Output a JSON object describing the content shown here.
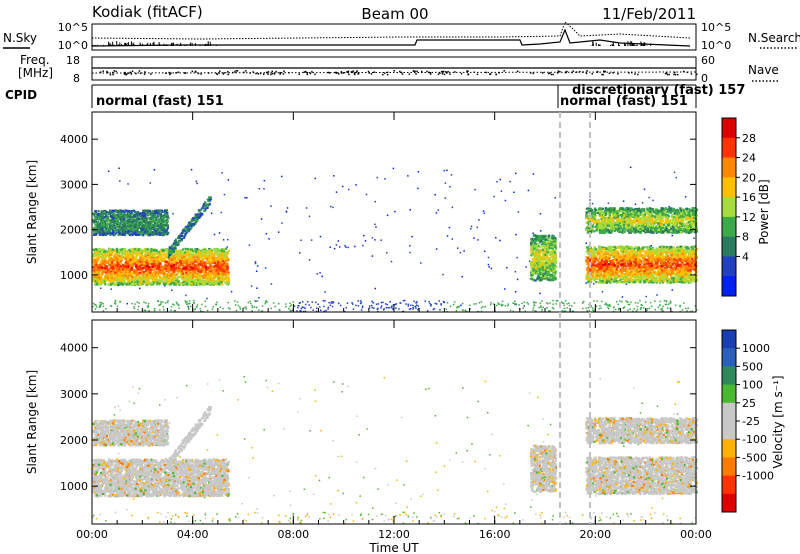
{
  "header": {
    "station": "Kodiak (fitACF)",
    "beam": "Beam 00",
    "date": "11/Feb/2011"
  },
  "strip_labels": {
    "nsky": "N.Sky",
    "nsearch": "N.Search",
    "freq": "Freq.",
    "freq_unit": "[MHz]",
    "nave": "Nave",
    "cpid": "CPID"
  },
  "noise_axis": {
    "left_ticks": [
      "10^5",
      "10^0"
    ],
    "right_ticks": [
      "10^5",
      "10^0"
    ]
  },
  "freq_axis": {
    "left_ticks": [
      "18",
      "8"
    ],
    "right_ticks": [
      "60",
      "0"
    ]
  },
  "cpid_labels": [
    {
      "text": "normal (fast) 151",
      "hour": 0.1
    },
    {
      "text": "normal (fast) 151",
      "hour": 18.75
    },
    {
      "text": "discretionary (fast) 157",
      "hour": 19.3
    }
  ],
  "chart_data": [
    {
      "type": "heatmap",
      "name": "power",
      "xlabel": "",
      "ylabel": "Slant Range [km]",
      "xlim": [
        0,
        24
      ],
      "ylim": [
        180,
        4600
      ],
      "yticks": [
        1000,
        2000,
        3000,
        4000
      ],
      "colorbar": {
        "label": "Power [dB]",
        "ticks": [
          "28",
          "24",
          "20",
          "16",
          "12",
          "8",
          "4"
        ],
        "colors": [
          "#dd0000",
          "#ff3300",
          "#ff8800",
          "#ffc000",
          "#a6dc3c",
          "#3caa48",
          "#2a7a60",
          "#2040c0",
          "#0022ee"
        ]
      },
      "regions": [
        {
          "t0": 0.0,
          "t1": 5.4,
          "r0": 800,
          "r1": 1600,
          "level": "high"
        },
        {
          "t0": 0.0,
          "t1": 3.0,
          "r0": 1900,
          "r1": 2450,
          "level": "low"
        },
        {
          "t0": 17.4,
          "t1": 18.4,
          "r0": 900,
          "r1": 1900,
          "level": "mid"
        },
        {
          "t0": 19.6,
          "t1": 24.0,
          "r0": 850,
          "r1": 1650,
          "level": "high"
        },
        {
          "t0": 19.6,
          "t1": 24.0,
          "r0": 1950,
          "r1": 2500,
          "level": "mid"
        }
      ]
    },
    {
      "type": "heatmap",
      "name": "velocity",
      "xlabel": "Time UT",
      "ylabel": "Slant Range [km]",
      "xlim": [
        0,
        24
      ],
      "ylim": [
        180,
        4600
      ],
      "yticks": [
        1000,
        2000,
        3000,
        4000
      ],
      "xtick_labels": [
        "00:00",
        "04:00",
        "08:00",
        "12:00",
        "16:00",
        "20:00",
        "00:00"
      ],
      "colorbar": {
        "label": "Velocity [m s⁻¹]",
        "ticks": [
          "1000",
          "500",
          "100",
          "25",
          "-25",
          "-100",
          "-500",
          "-1000"
        ],
        "colors": [
          "#1a3fb0",
          "#2a60b8",
          "#2f8a5a",
          "#4ab830",
          "#c8c8c8",
          "#c8c8c8",
          "#ffb000",
          "#ff7a00",
          "#ff3300",
          "#dd0000"
        ]
      }
    }
  ]
}
